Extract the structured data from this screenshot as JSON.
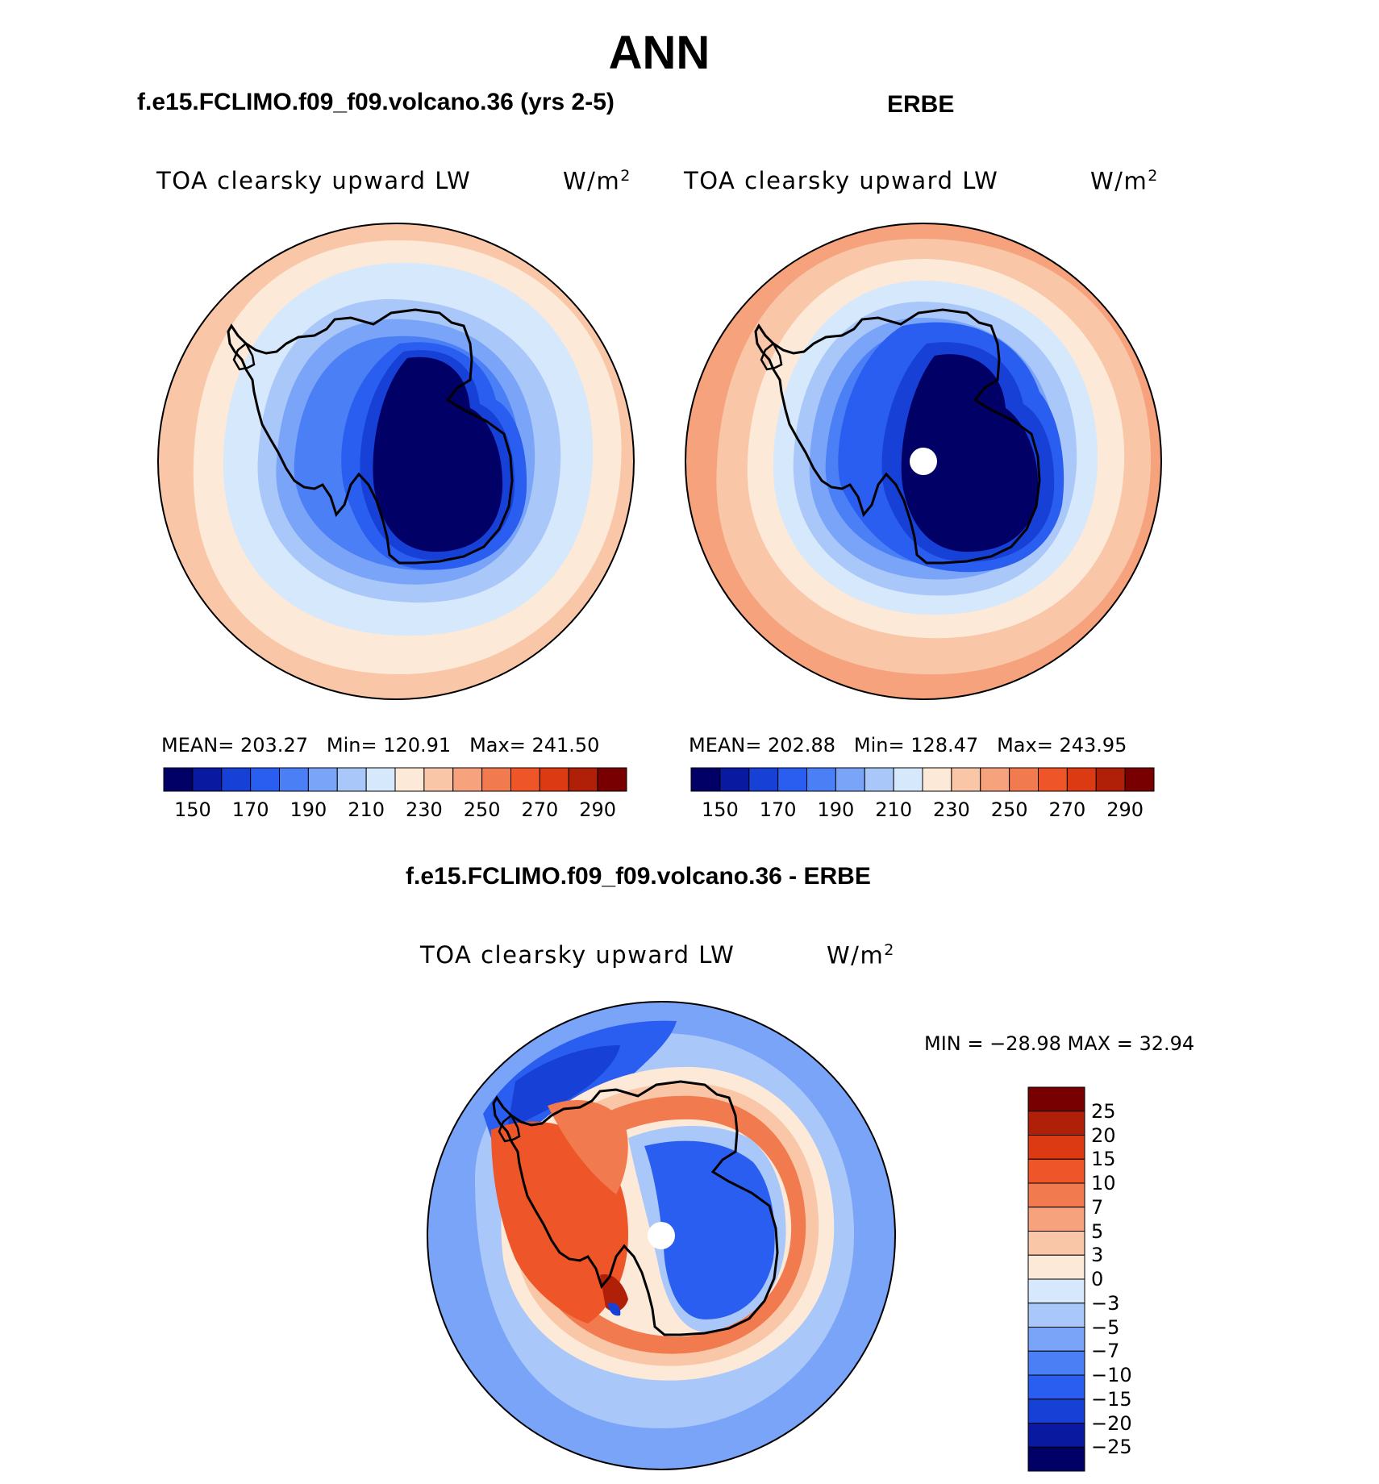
{
  "title": "ANN",
  "colors": {
    "model_obs_scale": [
      "#000066",
      "#0a1aa0",
      "#1640d6",
      "#2a5ef0",
      "#4a7ff5",
      "#7aa4f7",
      "#a9c7f9",
      "#d6e8fb",
      "#fde9d8",
      "#f9c7a7",
      "#f5a27d",
      "#f27a4f",
      "#ee5528",
      "#dc3a12",
      "#b02008",
      "#780000"
    ],
    "diff_scale": [
      "#000066",
      "#0a1aa0",
      "#1640d6",
      "#2a5ef0",
      "#4a7ff5",
      "#7aa4f7",
      "#a9c7f9",
      "#d6e8fb",
      "#fde9d8",
      "#f9c7a7",
      "#f5a27d",
      "#f27a4f",
      "#ee5528",
      "#dc3a12",
      "#b02008",
      "#780000"
    ],
    "coastline": "#000000",
    "pole_hole": "#ffffff"
  },
  "panels": {
    "model": {
      "case": "f.e15.FCLIMO.f09_f09.volcano.36 (yrs 2-5)",
      "variable": "TOA clearsky upward LW",
      "units": "W/m",
      "units_exp": "2",
      "mean_label": "MEAN=",
      "mean": "203.27",
      "min_label": "Min=",
      "min": "120.91",
      "max_label": "Max=",
      "max": "241.50",
      "ticks": [
        "150",
        "170",
        "190",
        "210",
        "230",
        "250",
        "270",
        "290"
      ]
    },
    "obs": {
      "case": "ERBE",
      "variable": "TOA clearsky upward LW",
      "units": "W/m",
      "units_exp": "2",
      "mean_label": "MEAN=",
      "mean": "202.88",
      "min_label": "Min=",
      "min": "128.47",
      "max_label": "Max=",
      "max": "243.95",
      "ticks": [
        "150",
        "170",
        "190",
        "210",
        "230",
        "250",
        "270",
        "290"
      ]
    },
    "diff": {
      "case": "f.e15.FCLIMO.f09_f09.volcano.36 - ERBE",
      "variable": "TOA clearsky upward LW",
      "units": "W/m",
      "units_exp": "2",
      "minmax": "MIN = −28.98 MAX =   32.94",
      "ticks": [
        "25",
        "20",
        "15",
        "10",
        "7",
        "5",
        "3",
        "0",
        "−3",
        "−5",
        "−7",
        "−10",
        "−15",
        "−20",
        "−25"
      ]
    }
  }
}
